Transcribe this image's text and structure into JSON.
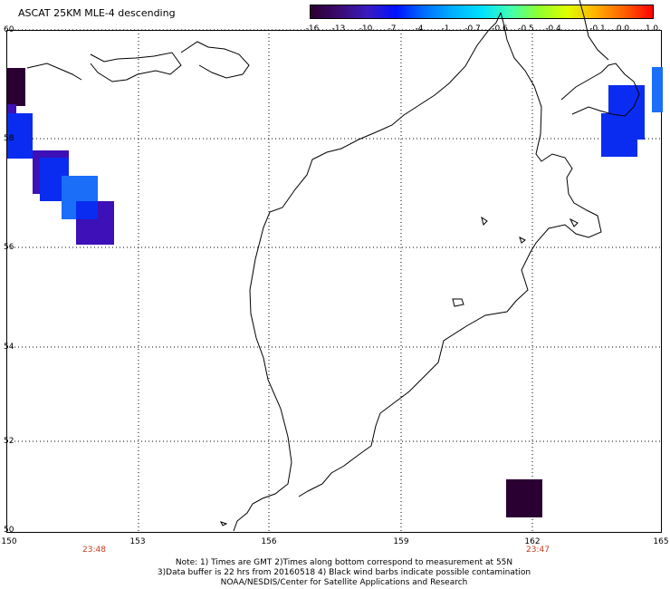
{
  "title": "ASCAT 25KM MLE-4 descending",
  "colorbar": {
    "labels": [
      "-16",
      "-13",
      "-10",
      "-7",
      "-4",
      "-1",
      "-0.7",
      "-0.6",
      "-0.5",
      "-0.4",
      "-0.1",
      "0.0",
      "1.0"
    ],
    "colors": [
      "#2a0030",
      "#3a0a70",
      "#3a1cc0",
      "#0010ff",
      "#0070ff",
      "#00b0ff",
      "#00e0ff",
      "#40ffb0",
      "#90ff30",
      "#e0ff00",
      "#ffb000",
      "#ff6000",
      "#ff0000"
    ]
  },
  "axes": {
    "y_ticks": [
      "60",
      "58",
      "56",
      "54",
      "52",
      "50"
    ],
    "x_ticks": [
      "150",
      "153",
      "156",
      "159",
      "162",
      "165"
    ]
  },
  "times": [
    "23:48",
    "23:47"
  ],
  "notes": [
    "Note: 1) Times are GMT 2)Times along bottom correspond to measurement at 55N",
    "3)Data buffer is 22 hrs from 20160518 4) Black wind barbs indicate possible contamination",
    "NOAA/NESDIS/Center for Satellite Applications and Research"
  ],
  "swath_colors": {
    "dark": "#2a0033",
    "purple": "#3d10b8",
    "blue": "#0a2cf0",
    "mid_blue": "#0a4ff5",
    "light_blue": "#1a6ef8"
  }
}
